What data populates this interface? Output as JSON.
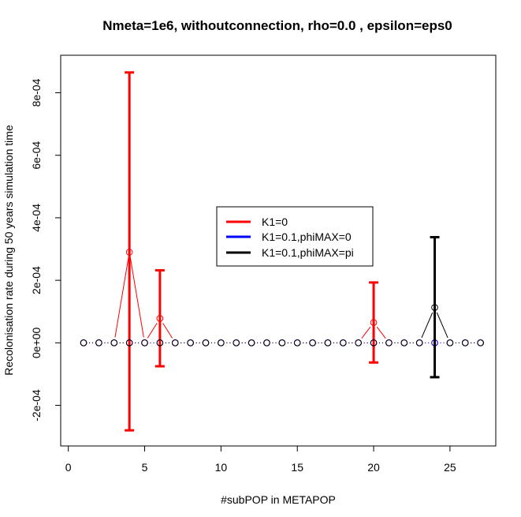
{
  "chart_data": {
    "type": "scatter",
    "title": "Nmeta=1e6,  withoutconnection, rho=0.0 , epsilon=eps0",
    "xlabel": "#subPOP in METAPOP",
    "ylabel": "Recolonisation rate during 50 years simulation time",
    "xlim": [
      -0.5,
      28
    ],
    "ylim": [
      -0.00033,
      0.00092
    ],
    "x_ticks": [
      0,
      5,
      10,
      15,
      20,
      25
    ],
    "x_tick_labels": [
      "0",
      "5",
      "10",
      "15",
      "20",
      "25"
    ],
    "y_ticks": [
      -0.0002,
      0,
      0.0002,
      0.0004,
      0.0006,
      0.0008
    ],
    "y_tick_labels": [
      "-2e-04",
      "0e+00",
      "2e-04",
      "4e-04",
      "6e-04",
      "8e-04"
    ],
    "grid": false,
    "legend_position": "center",
    "legend": [
      {
        "label": "K1=0",
        "color": "#ff0000"
      },
      {
        "label": "K1=0.1,phiMAX=0",
        "color": "#0000ff"
      },
      {
        "label": "K1=0.1,phiMAX=pi",
        "color": "#000000"
      }
    ],
    "x": [
      1,
      2,
      3,
      4,
      5,
      6,
      7,
      8,
      9,
      10,
      11,
      12,
      13,
      14,
      15,
      16,
      17,
      18,
      19,
      20,
      21,
      22,
      23,
      24,
      25,
      26,
      27
    ],
    "series": [
      {
        "name": "K1=0",
        "color": "#ff0000",
        "values": [
          0,
          0,
          0,
          0.00029,
          0,
          7.8e-05,
          0,
          0,
          0,
          0,
          0,
          0,
          0,
          0,
          0,
          0,
          0,
          0,
          0,
          6.5e-05,
          0,
          0,
          0,
          0,
          0,
          0,
          0
        ],
        "error_bars": [
          {
            "x": 4,
            "low": -0.00028,
            "high": 0.000865
          },
          {
            "x": 6,
            "low": -7.5e-05,
            "high": 0.000232
          },
          {
            "x": 20,
            "low": -6.3e-05,
            "high": 0.000193
          }
        ]
      },
      {
        "name": "K1=0.1,phiMAX=0",
        "color": "#0000ff",
        "values": [
          0,
          0,
          0,
          0,
          0,
          0,
          0,
          0,
          0,
          0,
          0,
          0,
          0,
          0,
          0,
          0,
          0,
          0,
          0,
          0,
          0,
          0,
          0,
          0,
          0,
          0,
          0
        ],
        "error_bars": []
      },
      {
        "name": "K1=0.1,phiMAX=pi",
        "color": "#000000",
        "values": [
          0,
          0,
          0,
          0,
          0,
          0,
          0,
          0,
          0,
          0,
          0,
          0,
          0,
          0,
          0,
          0,
          0,
          0,
          0,
          0,
          0,
          0,
          0,
          0.000113,
          0,
          0,
          0
        ],
        "error_bars": [
          {
            "x": 24,
            "low": -0.00011,
            "high": 0.000338
          }
        ]
      }
    ]
  }
}
